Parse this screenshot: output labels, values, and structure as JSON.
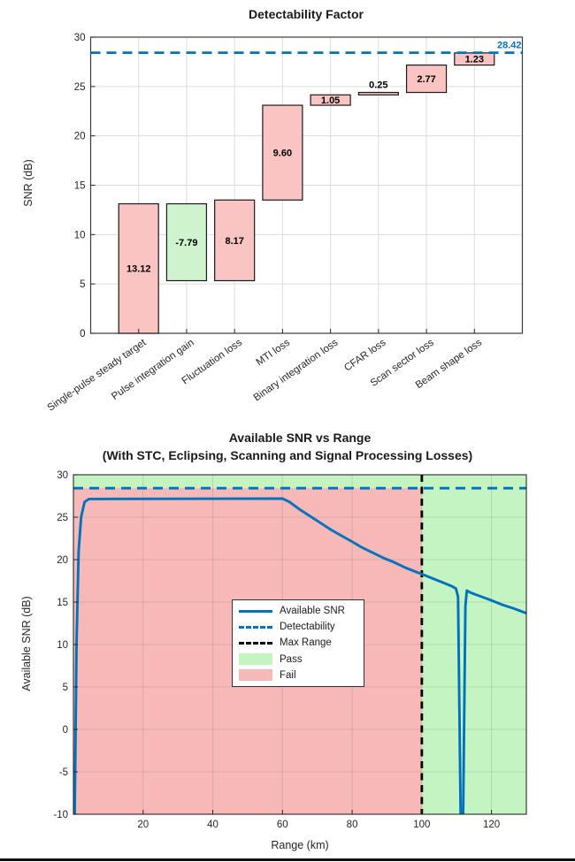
{
  "colors": {
    "matlab_blue": "#0072BD",
    "bar_increase_fill": "#F9C4C2",
    "bar_decrease_fill": "#CFF3CC",
    "bar_edge": "#1a1a1a",
    "fail_fill": "#F7B9B8",
    "pass_fill": "#C4F4C2",
    "grid": "#DCDCDC",
    "axis": "#262626",
    "max_range_line": "#000000"
  },
  "chart_data": [
    {
      "type": "bar",
      "subtype": "waterfall",
      "title": "Detectability Factor",
      "ylabel": "SNR (dB)",
      "ylim": [
        0,
        30
      ],
      "yticks": [
        0,
        5,
        10,
        15,
        20,
        25,
        30
      ],
      "grid": "on",
      "categories": [
        "Single-pulse steady target",
        "Pulse integration gain",
        "Fluctuation loss",
        "MTI loss",
        "Binary integration loss",
        "CFAR loss",
        "Scan sector loss",
        "Beam shape loss"
      ],
      "values": [
        13.12,
        -7.79,
        8.17,
        9.6,
        1.05,
        0.25,
        2.77,
        1.23
      ],
      "value_labels": [
        "13.12",
        "-7.79",
        "8.17",
        "9.60",
        "1.05",
        "0.25",
        "2.77",
        "1.23"
      ],
      "cumulative": [
        13.12,
        5.33,
        13.5,
        23.1,
        24.15,
        24.4,
        27.17,
        28.4
      ],
      "detectability_line": {
        "value": 28.42,
        "label": "28.42",
        "style": "dashed"
      }
    },
    {
      "type": "line",
      "title": "Available SNR vs Range",
      "subtitle": "(With STC, Eclipsing, Scanning and Signal Processing Losses)",
      "xlabel": "Range (km)",
      "ylabel": "Available SNR (dB)",
      "xlim": [
        0,
        130
      ],
      "ylim": [
        -10,
        30
      ],
      "xticks": [
        20,
        40,
        60,
        80,
        100,
        120
      ],
      "yticks": [
        -10,
        -5,
        0,
        5,
        10,
        15,
        20,
        25,
        30
      ],
      "grid": "on",
      "detectability": {
        "value": 28.42,
        "style": "dashed"
      },
      "max_range_km": 100,
      "regions": [
        {
          "name": "Fail",
          "x": [
            0,
            100
          ],
          "y": [
            -10,
            28.42
          ]
        },
        {
          "name": "Pass",
          "x": [
            100,
            130
          ],
          "y": [
            -10,
            30
          ]
        },
        {
          "name": "Pass",
          "x": [
            0,
            100
          ],
          "y": [
            28.42,
            30
          ]
        }
      ],
      "series": [
        {
          "name": "Available SNR",
          "points": [
            [
              0.35,
              -10.6
            ],
            [
              0.9,
              10
            ],
            [
              1.5,
              21
            ],
            [
              2.2,
              25
            ],
            [
              3.2,
              26.8
            ],
            [
              4.5,
              27.15
            ],
            [
              60,
              27.2
            ],
            [
              62,
              26.8
            ],
            [
              65,
              25.9
            ],
            [
              68,
              25.1
            ],
            [
              71,
              24.3
            ],
            [
              74,
              23.5
            ],
            [
              77,
              22.8
            ],
            [
              80,
              22.1
            ],
            [
              83,
              21.4
            ],
            [
              86,
              20.8
            ],
            [
              89,
              20.2
            ],
            [
              92,
              19.7
            ],
            [
              95,
              19.1
            ],
            [
              98,
              18.6
            ],
            [
              100,
              18.3
            ],
            [
              103,
              17.8
            ],
            [
              106,
              17.3
            ],
            [
              108.5,
              16.9
            ],
            [
              109.8,
              16.6
            ],
            [
              110.4,
              15.6
            ],
            [
              111.15,
              -10.6
            ],
            [
              111.85,
              -10.6
            ],
            [
              112.5,
              14.5
            ],
            [
              112.9,
              16.35
            ],
            [
              114,
              16.1
            ],
            [
              116,
              15.8
            ],
            [
              118,
              15.5
            ],
            [
              120,
              15.2
            ],
            [
              123,
              14.7
            ],
            [
              126,
              14.3
            ],
            [
              128,
              14.0
            ],
            [
              130,
              13.7
            ]
          ]
        }
      ],
      "legend": {
        "items": [
          {
            "label": "Available SNR",
            "swatch": "line-solid-blue"
          },
          {
            "label": "Detectability",
            "swatch": "line-dashed-blue"
          },
          {
            "label": "Max Range",
            "swatch": "line-dashed-black"
          },
          {
            "label": "Pass",
            "swatch": "patch-green"
          },
          {
            "label": "Fail",
            "swatch": "patch-red"
          }
        ]
      }
    }
  ]
}
